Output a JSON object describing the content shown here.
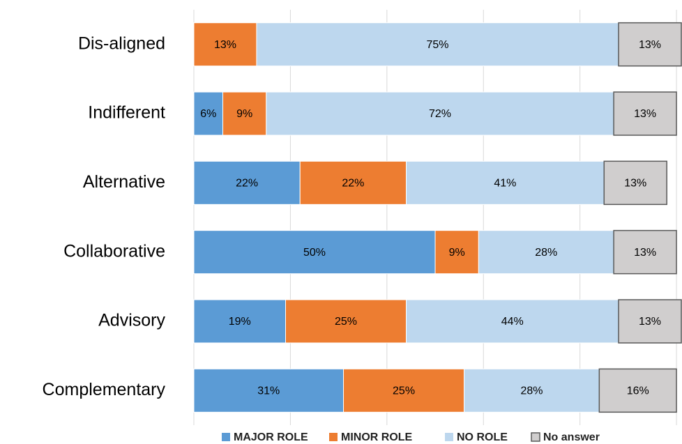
{
  "chart_data": {
    "type": "stacked_barh",
    "categories": [
      "Dis-aligned",
      "Indifferent",
      "Alternative",
      "Collaborative",
      "Advisory",
      "Complementary"
    ],
    "series": [
      {
        "name": "MAJOR ROLE",
        "color": "#5b9bd5",
        "values": [
          0,
          6,
          22,
          50,
          19,
          31
        ],
        "value_labels": [
          null,
          "6%",
          "22%",
          "50%",
          "19%",
          "31%"
        ]
      },
      {
        "name": "MINOR ROLE",
        "color": "#ed7d31",
        "values": [
          13,
          9,
          22,
          9,
          25,
          25
        ],
        "value_labels": [
          "13%",
          "9%",
          "22%",
          "9%",
          "25%",
          "25%"
        ]
      },
      {
        "name": "NO ROLE",
        "color": "#bdd7ee",
        "values": [
          75,
          72,
          41,
          28,
          44,
          28
        ],
        "value_labels": [
          "75%",
          "72%",
          "41%",
          "28%",
          "44%",
          "28%"
        ]
      },
      {
        "name": "No answer",
        "color": "#d0cece",
        "values": [
          13,
          13,
          13,
          13,
          13,
          16
        ],
        "value_labels": [
          "13%",
          "13%",
          "13%",
          "13%",
          "13%",
          "16%"
        ]
      }
    ],
    "xlim": [
      0,
      100
    ],
    "xticks": [
      0,
      20,
      40,
      60,
      80,
      100
    ],
    "grid": true,
    "legend": "bottom"
  }
}
